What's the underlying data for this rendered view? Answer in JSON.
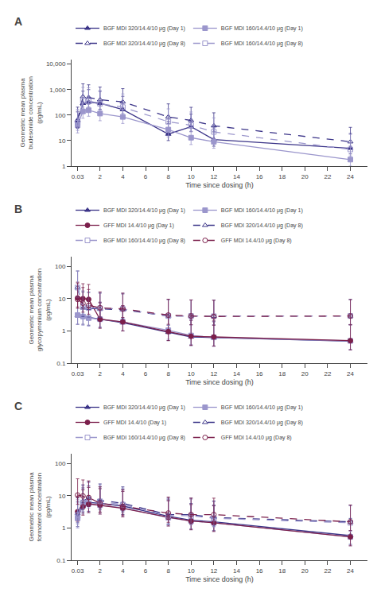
{
  "chart_data": [
    {
      "type": "line",
      "title": "A",
      "x_label": "Time since dosing (h)",
      "y_label": "Geometric mean plasma\nbudesonide concentration\n(pg/mL)",
      "log": "y",
      "grid": false,
      "legend": "top",
      "xlim": [
        -0.5,
        25.5
      ],
      "xticks": [
        0.03,
        2,
        4,
        6,
        8,
        10,
        12,
        14,
        16,
        18,
        20,
        22,
        24
      ],
      "ylim": [
        1,
        15000
      ],
      "yticks": [
        1,
        10,
        100,
        {
          "value": 1000,
          "label": "1,000"
        },
        {
          "value": 10000,
          "label": "10,000"
        }
      ],
      "x": [
        0.03,
        0.5,
        1.0,
        2.0,
        4.0,
        8.0,
        10.0,
        12.0,
        24.0
      ],
      "series": [
        {
          "name": "BGF MDI 320/14.4/10 μg (Day 1)",
          "color": "#3b3488",
          "line_style": "solid",
          "marker": "triangle-up",
          "values": [
            60,
            290,
            320,
            290,
            165,
            18,
            35,
            11,
            5.0
          ],
          "yerr_lo": [
            30,
            140,
            150,
            120,
            75,
            8,
            12,
            5,
            2.0
          ],
          "yerr_hi": [
            80,
            580,
            680,
            560,
            380,
            38,
            75,
            24,
            14
          ]
        },
        {
          "name": "BGF MDI 160/14.4/10 μg (Day 1)",
          "color": "#9b96cc",
          "line_style": "solid",
          "marker": "square",
          "values": [
            40,
            140,
            155,
            115,
            85,
            27,
            13,
            9,
            1.8
          ],
          "yerr_lo": [
            20,
            65,
            65,
            55,
            38,
            13,
            6,
            4,
            0.8
          ],
          "yerr_hi": [
            90,
            330,
            360,
            260,
            190,
            65,
            38,
            22,
            4.5
          ]
        },
        {
          "name": "BGF MDI 320/14.4/10 μg (Day 8)",
          "color": "#3b3488",
          "line_style": "dashed",
          "marker": "triangle-up-open",
          "values": [
            65,
            530,
            490,
            400,
            330,
            85,
            62,
            38,
            9.0
          ],
          "yerr_lo": [
            32,
            240,
            220,
            170,
            140,
            38,
            28,
            16,
            4
          ],
          "yerr_hi": [
            140,
            1150,
            1050,
            860,
            760,
            190,
            140,
            85,
            24
          ]
        },
        {
          "name": "BGF MDI 160/14.4/10 μg (Day 8)",
          "color": "#9b96cc",
          "line_style": "dashed",
          "marker": "square-open",
          "values": [
            50,
            370,
            360,
            280,
            205,
            55,
            40,
            22,
            4.5
          ],
          "yerr_lo": [
            25,
            165,
            150,
            120,
            90,
            25,
            18,
            10,
            2
          ],
          "yerr_hi": [
            120,
            850,
            820,
            640,
            470,
            120,
            92,
            56,
            13
          ]
        }
      ]
    },
    {
      "type": "line",
      "title": "B",
      "x_label": "Time since dosing (h)",
      "y_label": "Geometric mean plasma\nglycopyrronium concentration\n(pg/mL)",
      "log": "y",
      "grid": false,
      "legend": "top",
      "xlim": [
        -0.5,
        25.5
      ],
      "xticks": [
        0.03,
        2,
        4,
        6,
        8,
        10,
        12,
        14,
        16,
        18,
        20,
        22,
        24
      ],
      "ylim": [
        0.1,
        200
      ],
      "yticks": [
        0.1,
        1,
        10,
        100
      ],
      "x": [
        0.03,
        0.5,
        1.0,
        2.0,
        4.0,
        8.0,
        10.0,
        12.0,
        24.0
      ],
      "series": [
        {
          "name": "BGF MDI 320/14.4/10 μg (Day 1)",
          "color": "#3b3488",
          "line_style": "solid",
          "marker": "triangle-up",
          "values": [
            3.0,
            2.8,
            2.6,
            2.3,
            1.8,
            0.9,
            0.65,
            0.62,
            0.48
          ],
          "yerr_lo": [
            1.4,
            1.2,
            1.1,
            1.0,
            0.8,
            0.4,
            0.3,
            0.28,
            0.22
          ],
          "yerr_hi": [
            6.5,
            6.5,
            6.0,
            5.5,
            4.2,
            2.1,
            1.5,
            1.3,
            1.1
          ]
        },
        {
          "name": "BGF MDI 160/14.4/10 μg (Day 1)",
          "color": "#9b96cc",
          "line_style": "solid",
          "marker": "square",
          "values": [
            3.1,
            2.8,
            2.5,
            2.3,
            1.9,
            1.05,
            0.72,
            0.63,
            0.49
          ],
          "yerr_lo": [
            1.5,
            1.3,
            1.1,
            1.05,
            0.9,
            0.5,
            0.34,
            0.3,
            0.23
          ],
          "yerr_hi": [
            6.3,
            6.0,
            5.6,
            5.0,
            4.0,
            2.1,
            1.55,
            1.35,
            1.05
          ]
        },
        {
          "name": "GFF MDI 14.4/10 μg (Day 1)",
          "color": "#7b1f4b",
          "line_style": "solid",
          "marker": "circle",
          "values": [
            10.5,
            10.0,
            9.5,
            2.3,
            1.9,
            0.95,
            0.68,
            0.65,
            0.5
          ],
          "yerr_lo": [
            5.0,
            4.8,
            4.5,
            1.1,
            0.9,
            0.45,
            0.32,
            0.31,
            0.24
          ],
          "yerr_hi": [
            22,
            19,
            18,
            5.2,
            4.2,
            2.0,
            1.45,
            1.4,
            1.05
          ]
        },
        {
          "name": "BGF MDI 320/14.4/10 μg (Day 8)",
          "color": "#3b3488",
          "line_style": "dashed",
          "marker": "triangle-up-open",
          "values": [
            22,
            5.2,
            5.0,
            4.8,
            4.5,
            2.9,
            2.9,
            2.85,
            2.9
          ],
          "yerr_lo": [
            11,
            2.4,
            2.3,
            2.2,
            2.1,
            1.4,
            1.35,
            1.32,
            1.35
          ],
          "yerr_hi": [
            50,
            11,
            10.5,
            10,
            9.5,
            6.5,
            6.2,
            6.2,
            6.5
          ]
        },
        {
          "name": "BGF MDI 160/14.4/10 μg (Day 8)",
          "color": "#9b96cc",
          "line_style": "dashed",
          "marker": "square-open",
          "values": [
            22,
            5.5,
            5.2,
            5.0,
            4.8,
            2.9,
            2.9,
            2.85,
            2.9
          ],
          "yerr_lo": [
            11,
            2.5,
            2.4,
            2.3,
            2.2,
            1.4,
            1.35,
            1.32,
            1.35
          ],
          "yerr_hi": [
            50,
            12,
            11,
            10.5,
            10,
            6.5,
            6.2,
            6.2,
            6.5
          ]
        },
        {
          "name": "GFF MDI 14.4/10 μg (Day 8)",
          "color": "#7b1f4b",
          "line_style": "dashed",
          "marker": "circle-open",
          "values": [
            9.5,
            7.2,
            6.2,
            5.2,
            4.8,
            3.1,
            2.9,
            2.8,
            2.9
          ],
          "yerr_lo": [
            4.5,
            3.4,
            2.9,
            2.5,
            2.2,
            1.5,
            1.35,
            1.3,
            1.35
          ],
          "yerr_hi": [
            21,
            15,
            13,
            11,
            10,
            6.5,
            6.2,
            6.1,
            6.5
          ]
        }
      ]
    },
    {
      "type": "line",
      "title": "C",
      "x_label": "Time since dosing (h)",
      "y_label": "Geometric mean plasma\nformoterol concentration\n(pg/mL)",
      "log": "y",
      "grid": false,
      "legend": "top",
      "xlim": [
        -0.5,
        25.5
      ],
      "xticks": [
        0.03,
        2,
        4,
        6,
        8,
        10,
        12,
        14,
        16,
        18,
        20,
        22,
        24
      ],
      "ylim": [
        0.1,
        200
      ],
      "yticks": [
        0.1,
        1,
        10,
        100
      ],
      "x": [
        0.03,
        0.5,
        1.0,
        2.0,
        4.0,
        8.0,
        10.0,
        12.0,
        24.0
      ],
      "series": [
        {
          "name": "BGF MDI 320/14.4/10 μg (Day 1)",
          "color": "#3b3488",
          "line_style": "solid",
          "marker": "triangle-up",
          "values": [
            2.2,
            5.5,
            6.2,
            5.8,
            4.8,
            2.3,
            1.75,
            1.55,
            0.58
          ],
          "yerr_lo": [
            1.1,
            2.5,
            2.9,
            2.7,
            2.2,
            1.05,
            0.82,
            0.72,
            0.27
          ],
          "yerr_hi": [
            4.5,
            12,
            14,
            13,
            11,
            5.2,
            4.0,
            3.6,
            1.4
          ]
        },
        {
          "name": "BGF MDI 160/14.4/10 μg (Day 1)",
          "color": "#9b96cc",
          "line_style": "solid",
          "marker": "square",
          "values": [
            2.0,
            4.9,
            5.6,
            5.1,
            4.2,
            2.1,
            1.65,
            1.45,
            0.53
          ],
          "yerr_lo": [
            1.0,
            2.2,
            2.6,
            2.4,
            1.9,
            0.95,
            0.77,
            0.67,
            0.25
          ],
          "yerr_hi": [
            4.0,
            11,
            12.5,
            11.5,
            9.5,
            4.8,
            3.7,
            3.4,
            1.25
          ]
        },
        {
          "name": "GFF MDI 14.4/10 (Day 1)",
          "color": "#7b1f4b",
          "line_style": "solid",
          "marker": "circle",
          "values": [
            3.2,
            4.6,
            5.6,
            5.1,
            4.1,
            2.15,
            1.65,
            1.45,
            0.53
          ],
          "yerr_lo": [
            1.6,
            2.1,
            2.6,
            2.4,
            1.9,
            1.0,
            0.77,
            0.67,
            0.25
          ],
          "yerr_hi": [
            6.5,
            10.5,
            12.5,
            11.5,
            9.5,
            4.9,
            3.7,
            3.4,
            1.25
          ]
        },
        {
          "name": "BGF MDI 320/14.4/10 μg (Day 8)",
          "color": "#3b3488",
          "line_style": "dashed",
          "marker": "triangle-up-open",
          "values": [
            2.8,
            6.8,
            8.5,
            7.2,
            5.8,
            2.6,
            2.6,
            2.1,
            1.55
          ],
          "yerr_lo": [
            1.35,
            3.1,
            3.9,
            3.3,
            2.6,
            1.25,
            1.25,
            0.96,
            0.72
          ],
          "yerr_hi": [
            5.8,
            15,
            19,
            16,
            13,
            5.8,
            5.8,
            4.8,
            3.6
          ]
        },
        {
          "name": "BGF MDI 160/14.4/10 μg (Day 8)",
          "color": "#9b96cc",
          "line_style": "dashed",
          "marker": "square-open",
          "values": [
            2.5,
            6.2,
            7.8,
            6.7,
            5.3,
            2.4,
            2.4,
            2.0,
            1.45
          ],
          "yerr_lo": [
            1.2,
            2.9,
            3.6,
            3.1,
            2.4,
            1.15,
            1.15,
            0.92,
            0.67
          ],
          "yerr_hi": [
            5.2,
            14,
            17.5,
            15,
            12,
            5.5,
            5.4,
            4.5,
            3.4
          ]
        },
        {
          "name": "GFF MDI 14.4/10 μg (Day 8)",
          "color": "#7b1f4b",
          "line_style": "dashed",
          "marker": "circle-open",
          "values": [
            10.5,
            9.8,
            8.8,
            5.8,
            4.7,
            2.9,
            2.6,
            2.6,
            1.55
          ],
          "yerr_lo": [
            5.1,
            4.7,
            4.2,
            2.7,
            2.2,
            1.4,
            1.25,
            1.25,
            0.72
          ],
          "yerr_hi": [
            23,
            21,
            20,
            13,
            10.5,
            6.2,
            5.8,
            5.8,
            3.6
          ]
        }
      ]
    }
  ]
}
